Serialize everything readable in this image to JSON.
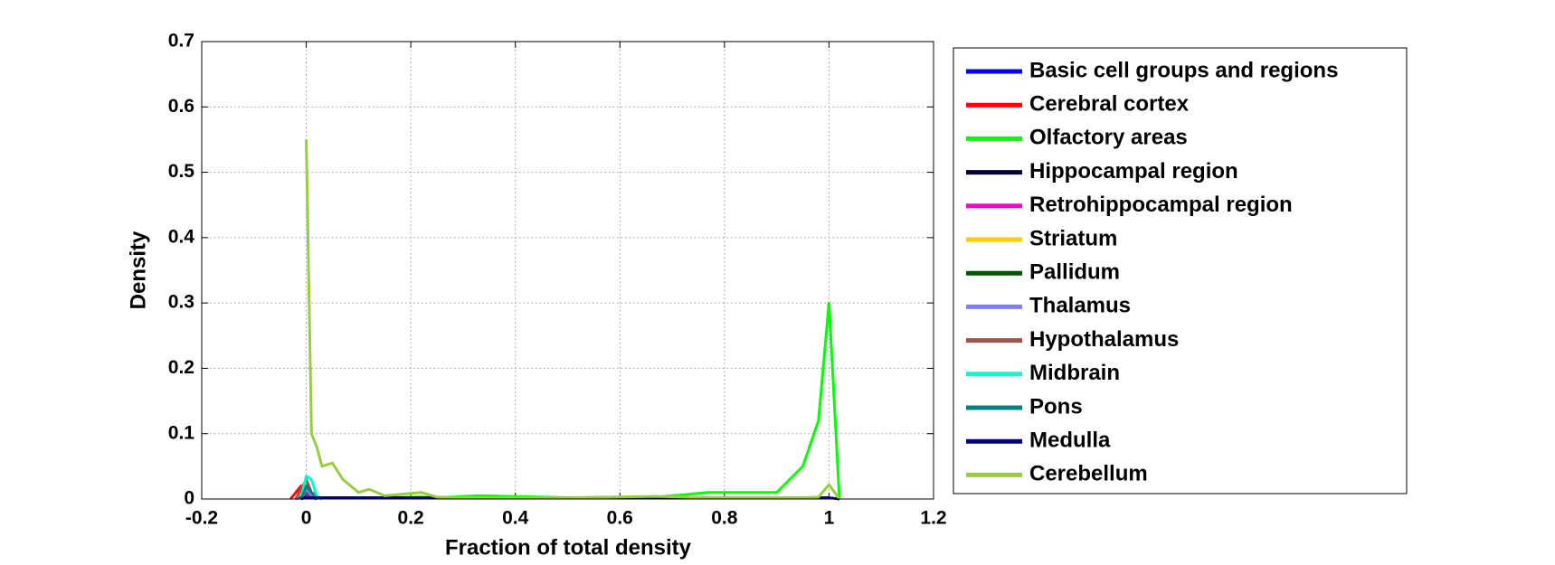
{
  "chart_data": {
    "type": "line",
    "x_label": "Fraction of total density",
    "y_label": "Density",
    "xlim": [
      -0.2,
      1.2
    ],
    "ylim": [
      0,
      0.7
    ],
    "xticks": [
      -0.2,
      0,
      0.2,
      0.4,
      0.6,
      0.8,
      1,
      1.2
    ],
    "yticks": [
      0,
      0.1,
      0.2,
      0.3,
      0.4,
      0.5,
      0.6,
      0.7
    ],
    "grid": true,
    "legend": "outside right",
    "x": [
      -0.03,
      -0.02,
      -0.01,
      0,
      0.01,
      0.02,
      0.03,
      0.05,
      0.07,
      0.1,
      0.12,
      0.15,
      0.22,
      0.25,
      0.33,
      0.5,
      0.67,
      0.77,
      0.85,
      0.9,
      0.95,
      0.98,
      1,
      1.02
    ],
    "series": [
      {
        "name": "Basic cell groups and regions",
        "color": "#0000ff",
        "values": [
          null,
          0,
          0.005,
          0.02,
          0.005,
          0,
          null,
          null,
          null,
          null,
          null,
          null,
          null,
          null,
          null,
          null,
          null,
          null,
          null,
          null,
          null,
          null,
          null,
          null
        ]
      },
      {
        "name": "Cerebral cortex",
        "color": "#ff0000",
        "values": [
          0,
          0.01,
          0.02,
          0.015,
          0.01,
          0.005,
          0,
          null,
          null,
          null,
          null,
          null,
          null,
          null,
          null,
          null,
          null,
          null,
          null,
          null,
          null,
          null,
          null,
          null
        ]
      },
      {
        "name": "Olfactory areas",
        "color": "#00ff00",
        "values": [
          null,
          null,
          null,
          0.01,
          0.005,
          0.003,
          0.002,
          0.002,
          0.002,
          0.002,
          0.002,
          0.002,
          0.003,
          0.002,
          0.005,
          0.002,
          0.003,
          0.01,
          0.01,
          0.01,
          0.05,
          0.12,
          0.3,
          0
        ]
      },
      {
        "name": "Hippocampal region",
        "color": "#000033",
        "values": [
          null,
          null,
          0,
          0.01,
          0.003,
          0,
          null,
          null,
          null,
          null,
          null,
          null,
          null,
          null,
          null,
          null,
          null,
          null,
          null,
          null,
          null,
          null,
          null,
          null
        ]
      },
      {
        "name": "Retrohippocampal region",
        "color": "#ff00cc",
        "values": [
          null,
          null,
          0,
          0.008,
          0.003,
          0,
          null,
          null,
          null,
          null,
          null,
          null,
          null,
          null,
          null,
          null,
          null,
          null,
          null,
          null,
          null,
          null,
          null,
          null
        ]
      },
      {
        "name": "Striatum",
        "color": "#ffcc00",
        "values": [
          null,
          0,
          0.01,
          0.025,
          0.01,
          0,
          null,
          null,
          null,
          null,
          null,
          null,
          null,
          null,
          null,
          null,
          null,
          null,
          null,
          null,
          null,
          null,
          null,
          null
        ]
      },
      {
        "name": "Pallidum",
        "color": "#005500",
        "values": [
          null,
          null,
          0,
          0.012,
          0.004,
          0,
          null,
          null,
          null,
          null,
          null,
          null,
          null,
          null,
          null,
          null,
          null,
          null,
          null,
          null,
          null,
          null,
          null,
          null
        ]
      },
      {
        "name": "Thalamus",
        "color": "#8080ff",
        "values": [
          null,
          null,
          0,
          0.015,
          0.005,
          0,
          null,
          null,
          null,
          null,
          null,
          null,
          null,
          null,
          null,
          null,
          null,
          null,
          null,
          null,
          null,
          null,
          null,
          null
        ]
      },
      {
        "name": "Hypothalamus",
        "color": "#a0524d",
        "values": [
          null,
          0,
          0.015,
          0.03,
          0.01,
          0,
          null,
          null,
          null,
          null,
          null,
          null,
          null,
          null,
          null,
          null,
          null,
          null,
          null,
          null,
          null,
          null,
          null,
          null
        ]
      },
      {
        "name": "Midbrain",
        "color": "#00ffcc",
        "values": [
          null,
          null,
          0,
          0.035,
          0.03,
          0.005,
          0,
          null,
          null,
          null,
          null,
          null,
          null,
          null,
          null,
          null,
          null,
          null,
          null,
          null,
          null,
          null,
          null,
          null
        ]
      },
      {
        "name": "Pons",
        "color": "#008080",
        "values": [
          null,
          null,
          0,
          0.02,
          0.01,
          0,
          null,
          null,
          null,
          null,
          null,
          null,
          null,
          null,
          null,
          null,
          null,
          null,
          null,
          null,
          null,
          null,
          null,
          null
        ]
      },
      {
        "name": "Medulla",
        "color": "#000080",
        "values": [
          null,
          null,
          0,
          0.003,
          0.002,
          0.002,
          0.002,
          0.002,
          0.002,
          0.002,
          0.002,
          0.002,
          0.002,
          0.002,
          0.002,
          0.002,
          0.002,
          0.002,
          0.002,
          0.002,
          0.002,
          0.002,
          0.002,
          0
        ]
      },
      {
        "name": "Cerebellum",
        "color": "#99cc44",
        "values": [
          null,
          null,
          null,
          0.55,
          0.1,
          0.08,
          0.05,
          0.055,
          0.03,
          0.01,
          0.015,
          0.005,
          0.01,
          0.003,
          0.002,
          0.002,
          0.004,
          0.002,
          0.002,
          0.002,
          0.002,
          0.003,
          0.022,
          0
        ]
      }
    ]
  }
}
